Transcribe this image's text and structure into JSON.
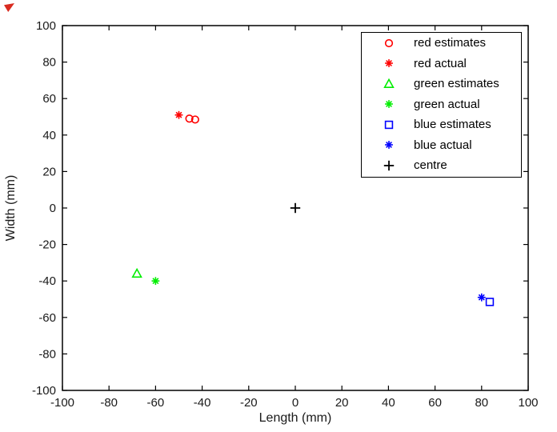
{
  "figure": {
    "background": "#ffffff",
    "axis_color": "#000000",
    "tick_label_color": "#1a1a1a"
  },
  "artifact": {
    "color": "#d92b20"
  },
  "chart_data": {
    "type": "scatter",
    "title": "",
    "xlabel": "Length (mm)",
    "ylabel": "Width (mm)",
    "xlim": [
      -100,
      100
    ],
    "ylim": [
      -100,
      100
    ],
    "xticks": [
      -100,
      -80,
      -60,
      -40,
      -20,
      0,
      20,
      40,
      60,
      80,
      100
    ],
    "yticks": [
      -100,
      -80,
      -60,
      -40,
      -20,
      0,
      20,
      40,
      60,
      80,
      100
    ],
    "grid": false,
    "legend": {
      "position": "top-right",
      "border_color": "#000000",
      "background": "#ffffff"
    },
    "series": [
      {
        "name": "red estimates",
        "marker": "circle",
        "color": "#ff0000",
        "points": [
          [
            -45.5,
            49
          ],
          [
            -43,
            48.5
          ]
        ]
      },
      {
        "name": "red actual",
        "marker": "asterisk",
        "color": "#ff0000",
        "points": [
          [
            -50,
            51
          ]
        ]
      },
      {
        "name": "green estimates",
        "marker": "triangle",
        "color": "#00ee00",
        "points": [
          [
            -68,
            -36
          ]
        ]
      },
      {
        "name": "green actual",
        "marker": "asterisk",
        "color": "#00ee00",
        "points": [
          [
            -60,
            -40
          ]
        ]
      },
      {
        "name": "blue estimates",
        "marker": "square",
        "color": "#0000ff",
        "points": [
          [
            83.5,
            -51.5
          ]
        ]
      },
      {
        "name": "blue actual",
        "marker": "asterisk",
        "color": "#0000ff",
        "points": [
          [
            80,
            -49
          ]
        ]
      },
      {
        "name": "centre",
        "marker": "plus",
        "color": "#000000",
        "points": [
          [
            0,
            0
          ]
        ]
      }
    ]
  }
}
